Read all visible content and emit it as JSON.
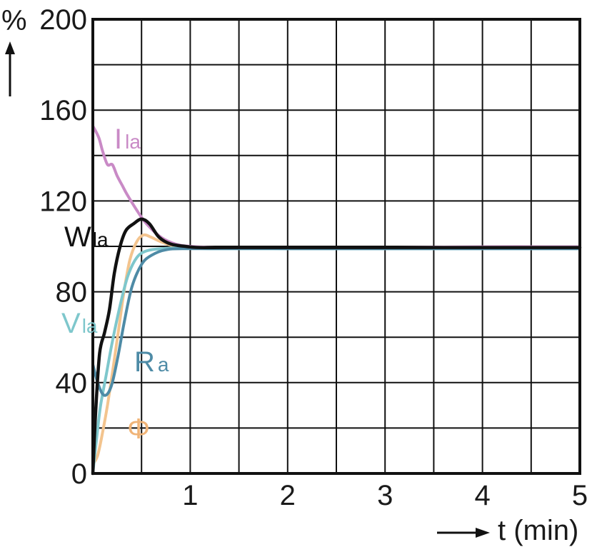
{
  "chart_data": {
    "type": "line",
    "xlim": [
      0,
      5
    ],
    "ylim": [
      0,
      200
    ],
    "x_ticks": [
      {
        "value": 1,
        "label": "1"
      },
      {
        "value": 2,
        "label": "2"
      },
      {
        "value": 3,
        "label": "3"
      },
      {
        "value": 4,
        "label": "4"
      },
      {
        "value": 5,
        "label": "5"
      }
    ],
    "y_ticks": [
      {
        "value": 0,
        "label": "0"
      },
      {
        "value": 40,
        "label": "40"
      },
      {
        "value": 80,
        "label": "80"
      },
      {
        "value": 120,
        "label": "120"
      },
      {
        "value": 160,
        "label": "160"
      },
      {
        "value": 200,
        "label": "200"
      }
    ],
    "x_minor_step": 0.5,
    "y_minor_step": 20,
    "grid": true,
    "xlabel": "t (min)",
    "ylabel": "%",
    "series": [
      {
        "name": "I",
        "subscript": "la",
        "color": "#c98ac6",
        "points": [
          [
            0,
            153
          ],
          [
            0.06,
            148
          ],
          [
            0.1,
            142
          ],
          [
            0.15,
            136
          ],
          [
            0.2,
            136
          ],
          [
            0.25,
            131
          ],
          [
            0.3,
            127
          ],
          [
            0.35,
            123
          ],
          [
            0.45,
            116
          ],
          [
            0.55,
            110
          ],
          [
            0.7,
            104
          ],
          [
            0.85,
            101
          ],
          [
            1.0,
            100
          ],
          [
            1.3,
            99.5
          ],
          [
            2,
            99.5
          ],
          [
            3,
            99.5
          ],
          [
            4,
            99.8
          ],
          [
            5,
            99.8
          ]
        ]
      },
      {
        "name": "W",
        "subscript": "la",
        "color": "#111111",
        "points": [
          [
            0,
            0
          ],
          [
            0.03,
            28
          ],
          [
            0.07,
            53
          ],
          [
            0.12,
            62
          ],
          [
            0.17,
            72
          ],
          [
            0.22,
            88
          ],
          [
            0.28,
            100
          ],
          [
            0.34,
            107
          ],
          [
            0.42,
            110
          ],
          [
            0.5,
            112
          ],
          [
            0.58,
            110
          ],
          [
            0.68,
            104
          ],
          [
            0.8,
            101
          ],
          [
            0.95,
            100
          ],
          [
            1.1,
            99.5
          ],
          [
            1.5,
            99.5
          ],
          [
            2,
            99.5
          ],
          [
            3,
            99.5
          ],
          [
            4,
            99.5
          ],
          [
            5,
            99.5
          ]
        ]
      },
      {
        "name": "",
        "color": "#f3c48e",
        "points": [
          [
            0,
            4
          ],
          [
            0.05,
            8
          ],
          [
            0.1,
            18
          ],
          [
            0.15,
            30
          ],
          [
            0.2,
            44
          ],
          [
            0.26,
            62
          ],
          [
            0.32,
            80
          ],
          [
            0.38,
            94
          ],
          [
            0.45,
            102
          ],
          [
            0.52,
            105
          ],
          [
            0.6,
            104
          ],
          [
            0.7,
            102
          ],
          [
            0.85,
            100
          ],
          [
            1.0,
            99.5
          ],
          [
            1.5,
            99.5
          ],
          [
            5,
            99.5
          ]
        ]
      },
      {
        "name": "V",
        "subscript": "la",
        "color": "#7ec7cc",
        "points": [
          [
            0,
            0
          ],
          [
            0.04,
            16
          ],
          [
            0.08,
            30
          ],
          [
            0.14,
            44
          ],
          [
            0.2,
            58
          ],
          [
            0.28,
            74
          ],
          [
            0.36,
            87
          ],
          [
            0.45,
            95
          ],
          [
            0.55,
            98
          ],
          [
            0.7,
            99
          ],
          [
            0.9,
            99.3
          ],
          [
            1.2,
            99
          ],
          [
            2,
            99
          ],
          [
            3,
            99
          ],
          [
            4,
            99
          ],
          [
            5,
            99
          ]
        ]
      },
      {
        "name": "R",
        "subscript": "a",
        "color": "#4e8ba6",
        "points": [
          [
            0,
            48
          ],
          [
            0.05,
            40
          ],
          [
            0.1,
            35
          ],
          [
            0.15,
            35
          ],
          [
            0.2,
            40
          ],
          [
            0.26,
            52
          ],
          [
            0.32,
            66
          ],
          [
            0.4,
            82
          ],
          [
            0.5,
            92
          ],
          [
            0.6,
            96
          ],
          [
            0.75,
            98.5
          ],
          [
            1.0,
            99
          ],
          [
            2,
            99
          ],
          [
            3,
            99
          ],
          [
            4,
            99
          ],
          [
            5,
            99
          ]
        ]
      }
    ],
    "annotations": [
      {
        "text": "Φ",
        "color": "#f0b478",
        "x": 0.47,
        "y": 20
      }
    ]
  }
}
